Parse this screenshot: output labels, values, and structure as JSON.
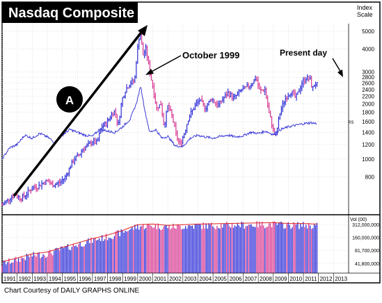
{
  "colors": {
    "up_bar": "#2a2ad6",
    "down_bar": "#d6338f",
    "rs_line": "#3b3bd8",
    "vol_avg_line": "#e02020",
    "title_bg": "#000000",
    "title_text": "#ffffff",
    "annotation": "#000000",
    "grid": "#cfcfcf"
  },
  "chart_data": {
    "type": "bar",
    "subtype": "price-ohlc",
    "title": "Nasdaq Composite",
    "credit": "Chart Courtesy of DAILY GRAPHS ONLINE",
    "y_axis_title": [
      "Index",
      "Scale"
    ],
    "scale": "log",
    "ylim": [
      500,
      5500
    ],
    "y_ticks": [
      800,
      1000,
      1200,
      1400,
      1600,
      1800,
      2000,
      2200,
      2400,
      2600,
      2800,
      3000,
      4000,
      5000
    ],
    "x_years": [
      "1991",
      "1992",
      "1993",
      "1994",
      "1995",
      "1996",
      "1997",
      "1998",
      "1999",
      "2000",
      "2001",
      "2002",
      "2003",
      "2004",
      "2005",
      "2006",
      "2007",
      "2008",
      "2009",
      "2010",
      "2011",
      "2012",
      "2013"
    ],
    "x_range": [
      1991.0,
      2014.0
    ],
    "grid": true,
    "price_series": [
      {
        "x": 1991.0,
        "y": 560
      },
      {
        "x": 1991.3,
        "y": 590
      },
      {
        "x": 1991.6,
        "y": 620
      },
      {
        "x": 1991.9,
        "y": 640
      },
      {
        "x": 1992.2,
        "y": 610
      },
      {
        "x": 1992.5,
        "y": 630
      },
      {
        "x": 1992.8,
        "y": 670
      },
      {
        "x": 1993.1,
        "y": 700
      },
      {
        "x": 1993.4,
        "y": 710
      },
      {
        "x": 1993.7,
        "y": 740
      },
      {
        "x": 1994.0,
        "y": 760
      },
      {
        "x": 1994.3,
        "y": 720
      },
      {
        "x": 1994.6,
        "y": 730
      },
      {
        "x": 1994.9,
        "y": 750
      },
      {
        "x": 1995.2,
        "y": 800
      },
      {
        "x": 1995.5,
        "y": 900
      },
      {
        "x": 1995.8,
        "y": 1000
      },
      {
        "x": 1996.1,
        "y": 1050
      },
      {
        "x": 1996.4,
        "y": 1150
      },
      {
        "x": 1996.7,
        "y": 1180
      },
      {
        "x": 1997.0,
        "y": 1250
      },
      {
        "x": 1997.3,
        "y": 1220
      },
      {
        "x": 1997.6,
        "y": 1500
      },
      {
        "x": 1997.9,
        "y": 1560
      },
      {
        "x": 1998.2,
        "y": 1720
      },
      {
        "x": 1998.5,
        "y": 1850
      },
      {
        "x": 1998.7,
        "y": 1500
      },
      {
        "x": 1998.95,
        "y": 2100
      },
      {
        "x": 1999.2,
        "y": 2400
      },
      {
        "x": 1999.5,
        "y": 2600
      },
      {
        "x": 1999.8,
        "y": 2700
      },
      {
        "x": 1999.95,
        "y": 3800
      },
      {
        "x": 2000.15,
        "y": 5000
      },
      {
        "x": 2000.35,
        "y": 3700
      },
      {
        "x": 2000.55,
        "y": 4000
      },
      {
        "x": 2000.8,
        "y": 3000
      },
      {
        "x": 2001.0,
        "y": 2500
      },
      {
        "x": 2001.25,
        "y": 1900
      },
      {
        "x": 2001.55,
        "y": 2000
      },
      {
        "x": 2001.75,
        "y": 1500
      },
      {
        "x": 2002.0,
        "y": 1950
      },
      {
        "x": 2002.3,
        "y": 1700
      },
      {
        "x": 2002.55,
        "y": 1350
      },
      {
        "x": 2002.8,
        "y": 1200
      },
      {
        "x": 2003.05,
        "y": 1350
      },
      {
        "x": 2003.4,
        "y": 1700
      },
      {
        "x": 2003.8,
        "y": 1950
      },
      {
        "x": 2004.1,
        "y": 2100
      },
      {
        "x": 2004.5,
        "y": 1900
      },
      {
        "x": 2004.9,
        "y": 2150
      },
      {
        "x": 2005.3,
        "y": 1950
      },
      {
        "x": 2005.7,
        "y": 2150
      },
      {
        "x": 2006.0,
        "y": 2300
      },
      {
        "x": 2006.4,
        "y": 2150
      },
      {
        "x": 2006.8,
        "y": 2350
      },
      {
        "x": 2007.2,
        "y": 2450
      },
      {
        "x": 2007.6,
        "y": 2600
      },
      {
        "x": 2007.85,
        "y": 2800
      },
      {
        "x": 2008.1,
        "y": 2350
      },
      {
        "x": 2008.45,
        "y": 2400
      },
      {
        "x": 2008.7,
        "y": 1800
      },
      {
        "x": 2008.95,
        "y": 1500
      },
      {
        "x": 2009.15,
        "y": 1300
      },
      {
        "x": 2009.45,
        "y": 1800
      },
      {
        "x": 2009.8,
        "y": 2150
      },
      {
        "x": 2010.2,
        "y": 2350
      },
      {
        "x": 2010.5,
        "y": 2150
      },
      {
        "x": 2010.9,
        "y": 2600
      },
      {
        "x": 2011.2,
        "y": 2800
      },
      {
        "x": 2011.45,
        "y": 2700
      },
      {
        "x": 2011.6,
        "y": 2400
      },
      {
        "x": 2011.75,
        "y": 2600
      },
      {
        "x": 2011.9,
        "y": 2550
      }
    ],
    "rs_line": {
      "label": "RS",
      "points": [
        {
          "x": 1991.0,
          "y": 1000
        },
        {
          "x": 1991.5,
          "y": 1150
        },
        {
          "x": 1992.0,
          "y": 1200
        },
        {
          "x": 1992.5,
          "y": 1350
        },
        {
          "x": 1993.0,
          "y": 1300
        },
        {
          "x": 1993.5,
          "y": 1380
        },
        {
          "x": 1994.0,
          "y": 1320
        },
        {
          "x": 1994.5,
          "y": 1230
        },
        {
          "x": 1995.0,
          "y": 1350
        },
        {
          "x": 1995.5,
          "y": 1450
        },
        {
          "x": 1996.0,
          "y": 1400
        },
        {
          "x": 1996.5,
          "y": 1350
        },
        {
          "x": 1997.0,
          "y": 1330
        },
        {
          "x": 1997.5,
          "y": 1460
        },
        {
          "x": 1998.0,
          "y": 1420
        },
        {
          "x": 1998.5,
          "y": 1400
        },
        {
          "x": 1999.0,
          "y": 1500
        },
        {
          "x": 1999.5,
          "y": 1650
        },
        {
          "x": 1999.9,
          "y": 2000
        },
        {
          "x": 2000.2,
          "y": 2500
        },
        {
          "x": 2000.5,
          "y": 1800
        },
        {
          "x": 2000.8,
          "y": 1400
        },
        {
          "x": 2001.2,
          "y": 1450
        },
        {
          "x": 2001.6,
          "y": 1300
        },
        {
          "x": 2002.0,
          "y": 1330
        },
        {
          "x": 2002.5,
          "y": 1180
        },
        {
          "x": 2003.0,
          "y": 1170
        },
        {
          "x": 2003.5,
          "y": 1300
        },
        {
          "x": 2004.0,
          "y": 1350
        },
        {
          "x": 2004.5,
          "y": 1320
        },
        {
          "x": 2005.0,
          "y": 1300
        },
        {
          "x": 2005.5,
          "y": 1330
        },
        {
          "x": 2006.0,
          "y": 1350
        },
        {
          "x": 2006.5,
          "y": 1320
        },
        {
          "x": 2007.0,
          "y": 1340
        },
        {
          "x": 2007.5,
          "y": 1400
        },
        {
          "x": 2008.0,
          "y": 1380
        },
        {
          "x": 2008.5,
          "y": 1420
        },
        {
          "x": 2009.0,
          "y": 1360
        },
        {
          "x": 2009.5,
          "y": 1450
        },
        {
          "x": 2010.0,
          "y": 1500
        },
        {
          "x": 2010.5,
          "y": 1530
        },
        {
          "x": 2011.0,
          "y": 1560
        },
        {
          "x": 2011.5,
          "y": 1580
        },
        {
          "x": 2011.9,
          "y": 1560
        }
      ]
    },
    "volume": {
      "label": "Vol (00)",
      "ticks": [
        "312,000,000",
        "160,000,000",
        "81,700,000",
        "41,800,000"
      ],
      "tick_values": [
        312000000,
        160000000,
        81700000,
        41800000
      ],
      "ylim": [
        25000000,
        450000000
      ],
      "points": [
        {
          "x": 1991.0,
          "y": 45000000
        },
        {
          "x": 1992.0,
          "y": 55000000
        },
        {
          "x": 1993.0,
          "y": 68000000
        },
        {
          "x": 1994.0,
          "y": 75000000
        },
        {
          "x": 1995.0,
          "y": 95000000
        },
        {
          "x": 1996.0,
          "y": 120000000
        },
        {
          "x": 1997.0,
          "y": 150000000
        },
        {
          "x": 1998.0,
          "y": 180000000
        },
        {
          "x": 1999.0,
          "y": 230000000
        },
        {
          "x": 2000.0,
          "y": 310000000
        },
        {
          "x": 2001.0,
          "y": 320000000
        },
        {
          "x": 2002.0,
          "y": 300000000
        },
        {
          "x": 2003.0,
          "y": 310000000
        },
        {
          "x": 2004.0,
          "y": 320000000
        },
        {
          "x": 2005.0,
          "y": 325000000
        },
        {
          "x": 2006.0,
          "y": 330000000
        },
        {
          "x": 2007.0,
          "y": 335000000
        },
        {
          "x": 2008.0,
          "y": 340000000
        },
        {
          "x": 2009.0,
          "y": 345000000
        },
        {
          "x": 2010.0,
          "y": 330000000
        },
        {
          "x": 2011.0,
          "y": 330000000
        },
        {
          "x": 2011.9,
          "y": 320000000
        }
      ]
    },
    "annotations": [
      {
        "text": "October 1999"
      },
      {
        "text": "Present day"
      },
      {
        "text": "A"
      }
    ]
  }
}
